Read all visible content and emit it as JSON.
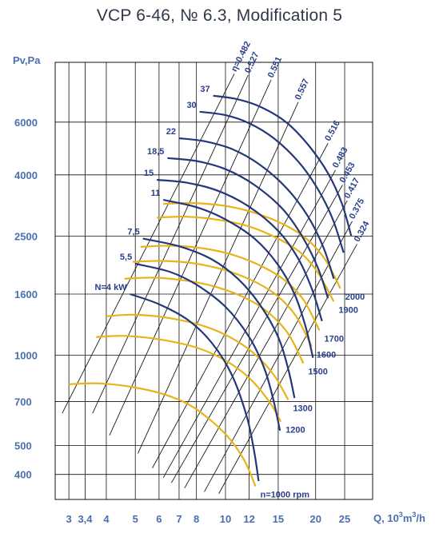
{
  "chart_data": {
    "type": "line",
    "title": "VCP 6-46, № 6.3, Modification 5",
    "xlabel": "Q, 10",
    "xlabel_exp": "3",
    "xlabel_unit": "m",
    "xlabel_unit_exp": "3",
    "xlabel_tail": "/h",
    "ylabel": "Pv,Pa",
    "x_scale": "log",
    "y_scale": "log",
    "xlim": [
      2.7,
      31
    ],
    "ylim": [
      330,
      9500
    ],
    "grid": true,
    "x_ticks": [
      {
        "label": "3",
        "value": 3
      },
      {
        "label": "3,4",
        "value": 3.4
      },
      {
        "label": "4",
        "value": 4
      },
      {
        "label": "5",
        "value": 5
      },
      {
        "label": "6",
        "value": 6
      },
      {
        "label": "7",
        "value": 7
      },
      {
        "label": "8",
        "value": 8
      },
      {
        "label": "10",
        "value": 10
      },
      {
        "label": "12",
        "value": 12
      },
      {
        "label": "15",
        "value": 15
      },
      {
        "label": "20",
        "value": 20
      },
      {
        "label": "25",
        "value": 25
      }
    ],
    "y_ticks": [
      {
        "label": "400",
        "value": 400
      },
      {
        "label": "500",
        "value": 500
      },
      {
        "label": "700",
        "value": 700
      },
      {
        "label": "1000",
        "value": 1000
      },
      {
        "label": "1600",
        "value": 1600
      },
      {
        "label": "2500",
        "value": 2500
      },
      {
        "label": "4000",
        "value": 4000
      },
      {
        "label": "6000",
        "value": 6000
      }
    ],
    "speed_curves": [
      {
        "name": "n=1000 rpm",
        "points": [
          [
            3.0,
            800
          ],
          [
            3.8,
            805
          ],
          [
            5.0,
            780
          ],
          [
            6.5,
            730
          ],
          [
            8.0,
            660
          ],
          [
            10.0,
            545
          ],
          [
            11.5,
            450
          ],
          [
            12.6,
            365
          ]
        ]
      },
      {
        "name": "1200",
        "points": [
          [
            3.7,
            1150
          ],
          [
            4.6,
            1160
          ],
          [
            6.0,
            1130
          ],
          [
            8.0,
            1060
          ],
          [
            10.0,
            960
          ],
          [
            12.0,
            840
          ],
          [
            14.0,
            700
          ],
          [
            15.3,
            600
          ]
        ]
      },
      {
        "name": "1300",
        "points": [
          [
            4.0,
            1350
          ],
          [
            5.0,
            1365
          ],
          [
            6.5,
            1330
          ],
          [
            8.5,
            1250
          ],
          [
            10.5,
            1140
          ],
          [
            12.5,
            1010
          ],
          [
            14.5,
            860
          ],
          [
            16.2,
            710
          ]
        ]
      },
      {
        "name": "1500",
        "points": [
          [
            4.6,
            1800
          ],
          [
            5.8,
            1815
          ],
          [
            7.5,
            1770
          ],
          [
            9.5,
            1680
          ],
          [
            12.0,
            1530
          ],
          [
            14.0,
            1380
          ],
          [
            16.2,
            1180
          ],
          [
            18.2,
            940
          ]
        ]
      },
      {
        "name": "1600",
        "points": [
          [
            4.9,
            2050
          ],
          [
            6.2,
            2065
          ],
          [
            8.0,
            2020
          ],
          [
            10.2,
            1910
          ],
          [
            12.8,
            1740
          ],
          [
            15.0,
            1570
          ],
          [
            17.2,
            1350
          ],
          [
            19.4,
            1070
          ]
        ]
      },
      {
        "name": "1700",
        "points": [
          [
            5.2,
            2300
          ],
          [
            6.6,
            2320
          ],
          [
            8.5,
            2270
          ],
          [
            10.8,
            2150
          ],
          [
            13.5,
            1960
          ],
          [
            16.0,
            1760
          ],
          [
            18.3,
            1520
          ],
          [
            20.6,
            1210
          ]
        ]
      },
      {
        "name": "1900",
        "points": [
          [
            5.9,
            2880
          ],
          [
            7.4,
            2900
          ],
          [
            9.5,
            2830
          ],
          [
            12.0,
            2690
          ],
          [
            15.0,
            2450
          ],
          [
            17.8,
            2200
          ],
          [
            20.4,
            1880
          ],
          [
            23.0,
            1510
          ]
        ]
      },
      {
        "name": "2000",
        "points": [
          [
            6.2,
            3200
          ],
          [
            7.8,
            3220
          ],
          [
            10.0,
            3150
          ],
          [
            12.6,
            2980
          ],
          [
            15.8,
            2720
          ],
          [
            18.7,
            2440
          ],
          [
            21.5,
            2090
          ],
          [
            24.2,
            1670
          ]
        ]
      }
    ],
    "power_curves": [
      {
        "name": "N=4 kW",
        "points": [
          [
            4.8,
            1600
          ],
          [
            6.0,
            1480
          ],
          [
            7.5,
            1310
          ],
          [
            9.0,
            1100
          ],
          [
            10.5,
            860
          ],
          [
            11.8,
            620
          ],
          [
            12.5,
            470
          ],
          [
            12.9,
            380
          ]
        ]
      },
      {
        "name": "5,5",
        "points": [
          [
            5.0,
            2020
          ],
          [
            6.5,
            1900
          ],
          [
            8.0,
            1720
          ],
          [
            10.0,
            1450
          ],
          [
            12.0,
            1150
          ],
          [
            13.5,
            900
          ],
          [
            14.5,
            700
          ],
          [
            15.2,
            560
          ]
        ]
      },
      {
        "name": "7,5",
        "points": [
          [
            5.3,
            2450
          ],
          [
            7.0,
            2310
          ],
          [
            9.0,
            2090
          ],
          [
            11.0,
            1800
          ],
          [
            13.0,
            1480
          ],
          [
            15.0,
            1150
          ],
          [
            16.2,
            900
          ],
          [
            17.0,
            720
          ]
        ]
      },
      {
        "name": "11",
        "points": [
          [
            6.2,
            3300
          ],
          [
            8.0,
            3120
          ],
          [
            10.0,
            2840
          ],
          [
            12.5,
            2450
          ],
          [
            15.0,
            2000
          ],
          [
            17.0,
            1600
          ],
          [
            18.5,
            1250
          ],
          [
            19.6,
            980
          ]
        ]
      },
      {
        "name": "15",
        "points": [
          [
            5.9,
            3850
          ],
          [
            7.5,
            3760
          ],
          [
            9.5,
            3530
          ],
          [
            12.0,
            3130
          ],
          [
            15.0,
            2600
          ],
          [
            17.5,
            2100
          ],
          [
            19.5,
            1650
          ],
          [
            21.0,
            1300
          ]
        ]
      },
      {
        "name": "18,5",
        "points": [
          [
            6.4,
            4550
          ],
          [
            8.0,
            4450
          ],
          [
            10.0,
            4180
          ],
          [
            12.5,
            3700
          ],
          [
            15.5,
            3080
          ],
          [
            18.0,
            2500
          ],
          [
            20.3,
            1970
          ],
          [
            22.0,
            1550
          ]
        ]
      },
      {
        "name": "22",
        "points": [
          [
            7.0,
            5300
          ],
          [
            8.5,
            5180
          ],
          [
            10.5,
            4880
          ],
          [
            13.0,
            4330
          ],
          [
            16.0,
            3610
          ],
          [
            18.8,
            2920
          ],
          [
            21.2,
            2300
          ],
          [
            23.0,
            1800
          ]
        ]
      },
      {
        "name": "30",
        "points": [
          [
            8.2,
            6500
          ],
          [
            10.0,
            6330
          ],
          [
            12.0,
            5950
          ],
          [
            14.5,
            5300
          ],
          [
            17.5,
            4430
          ],
          [
            20.3,
            3600
          ],
          [
            22.8,
            2850
          ],
          [
            24.8,
            2200
          ]
        ]
      },
      {
        "name": "37",
        "points": [
          [
            9.1,
            7350
          ],
          [
            11.0,
            7150
          ],
          [
            13.2,
            6720
          ],
          [
            16.0,
            5980
          ],
          [
            19.0,
            5000
          ],
          [
            22.0,
            4050
          ],
          [
            24.5,
            3200
          ],
          [
            26.3,
            2500
          ]
        ]
      }
    ],
    "efficiency_rays": [
      {
        "label": "η=0.482",
        "points": [
          [
            2.85,
            640
          ],
          [
            10.7,
            8700
          ]
        ]
      },
      {
        "label": "0.527",
        "points": [
          [
            3.6,
            640
          ],
          [
            11.9,
            8600
          ]
        ]
      },
      {
        "label": "0.551",
        "points": [
          [
            4.1,
            540
          ],
          [
            14.2,
            8300
          ]
        ]
      },
      {
        "label": "0.557",
        "points": [
          [
            5.1,
            470
          ],
          [
            17.5,
            7000
          ]
        ]
      },
      {
        "label": "0.516",
        "points": [
          [
            5.7,
            420
          ],
          [
            22.0,
            5100
          ]
        ]
      },
      {
        "label": "0.483",
        "points": [
          [
            6.2,
            390
          ],
          [
            23.3,
            4150
          ]
        ]
      },
      {
        "label": "0.453",
        "points": [
          [
            6.6,
            375
          ],
          [
            24.6,
            3700
          ]
        ]
      },
      {
        "label": "0.417",
        "points": [
          [
            7.3,
            360
          ],
          [
            25.5,
            3280
          ]
        ]
      },
      {
        "label": "0.375",
        "points": [
          [
            8.5,
            350
          ],
          [
            26.5,
            2800
          ]
        ]
      },
      {
        "label": "0.324",
        "points": [
          [
            9.5,
            345
          ],
          [
            27.5,
            2350
          ]
        ]
      }
    ],
    "colors": {
      "speed": "#e8b31a",
      "power": "#24377a",
      "efficiency": "#1a1a1a",
      "grid": "#111111",
      "tick_text": "#4a6fb0",
      "annotation": "#2a3f8a",
      "title": "#2e3848"
    }
  }
}
